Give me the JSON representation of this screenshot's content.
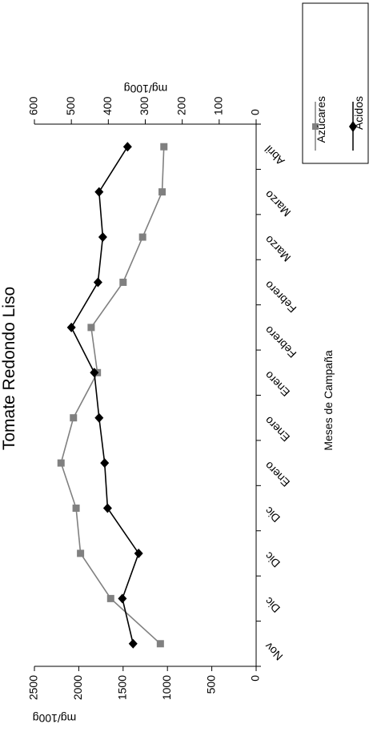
{
  "chart_data": {
    "type": "line",
    "orientation": "rotated-90-clockwise",
    "title": "Tomate Redondo Liso",
    "xlabel": "Meses de Campaña",
    "categories": [
      "Nov",
      "Dic",
      "Dic",
      "Dic",
      "Enero",
      "Enero",
      "Enero",
      "Febrero",
      "Febrero",
      "Marzo",
      "Marzo",
      "Abril"
    ],
    "left_axis": {
      "label": "mg/100g",
      "ylim": [
        0,
        2500
      ],
      "ticks": [
        "0",
        "500",
        "1000",
        "1500",
        "2000",
        "2500"
      ]
    },
    "right_axis": {
      "label": "mg/100g",
      "ylim": [
        0,
        600
      ],
      "ticks": [
        "0",
        "100",
        "200",
        "300",
        "400",
        "500",
        "600"
      ]
    },
    "series": [
      {
        "name": "Azúcares",
        "axis": "left",
        "marker": "square",
        "color": "#808080",
        "values": [
          1080,
          1640,
          1980,
          2030,
          2200,
          2060,
          1790,
          1860,
          1500,
          1280,
          1060,
          1040
        ]
      },
      {
        "name": "Ácidos",
        "axis": "right",
        "marker": "diamond",
        "color": "#000000",
        "values": [
          333,
          362,
          318,
          402,
          410,
          425,
          438,
          500,
          428,
          415,
          425,
          348
        ]
      }
    ],
    "legend": {
      "placement": "right"
    },
    "grid": false
  }
}
